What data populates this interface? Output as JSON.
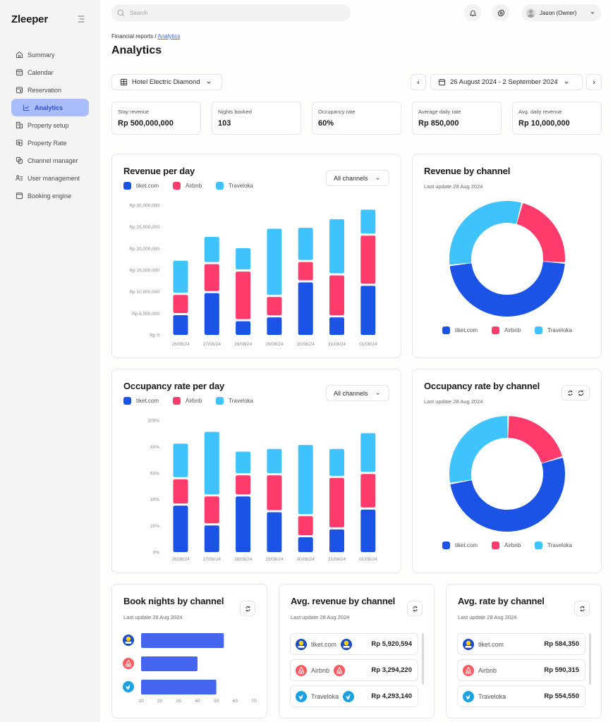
{
  "app": {
    "name": "Zleeper"
  },
  "sidebar": {
    "items": [
      {
        "label": "Summary",
        "icon": "home-icon"
      },
      {
        "label": "Calendar",
        "icon": "calendar-icon"
      },
      {
        "label": "Reservation",
        "icon": "reservation-icon"
      },
      {
        "label": "Analytics",
        "icon": "chart-line-icon",
        "active": true
      },
      {
        "label": "Property setup",
        "icon": "building-icon"
      },
      {
        "label": "Property Rate",
        "icon": "rate-icon"
      },
      {
        "label": "Channel manager",
        "icon": "channel-icon"
      },
      {
        "label": "User management",
        "icon": "users-list-icon"
      },
      {
        "label": "Booking engine",
        "icon": "window-icon"
      }
    ]
  },
  "topbar": {
    "search_placeholder": "Search",
    "user_label": "Jason (Owner)"
  },
  "breadcrumb": {
    "parent": "Financial reports",
    "separator": " / ",
    "current": "Analytics"
  },
  "page_title": "Analytics",
  "filters": {
    "hotel": "Hotel Electric Diamond",
    "date_range": "26 August 2024 - 2 September 2024"
  },
  "kpis": [
    {
      "label": "Stay revenue",
      "value": "Rp 500,000,000"
    },
    {
      "label": "Nights booked",
      "value": "103"
    },
    {
      "label": "Occupancy rate",
      "value": "60%"
    },
    {
      "label": "Average daily rate",
      "value": "Rp 850,000"
    },
    {
      "label": "Avg. daily revenue",
      "value": "Rp 10,000,000"
    }
  ],
  "channels": [
    {
      "name": "tiket.com",
      "color": "#1a53e6"
    },
    {
      "name": "Airbnb",
      "color": "#ff3b6b"
    },
    {
      "name": "Traveloka",
      "color": "#3ec3fc"
    }
  ],
  "cards": {
    "revenue_per_day": {
      "title": "Revenue per day",
      "filter": "All channels"
    },
    "revenue_by_channel": {
      "title": "Revenue by channel",
      "subtitle": "Last update 28 Aug 2024"
    },
    "occupancy_per_day": {
      "title": "Occupancy rate per day",
      "filter": "All channels"
    },
    "occupancy_by_channel": {
      "title": "Occupancy rate by channel",
      "subtitle": "Last update 28 Aug 2024"
    },
    "book_nights": {
      "title": "Book nights by channel",
      "subtitle": "Last update 28 Aug 2024"
    },
    "avg_revenue": {
      "title": "Avg. revenue by channel",
      "subtitle": "Last update 28 Aug 2024",
      "rows": [
        {
          "name": "tiket.com",
          "value": "Rp 5,920,594"
        },
        {
          "name": "Airbnb",
          "value": "Rp 3,294,220"
        },
        {
          "name": "Traveloka",
          "value": "Rp 4,293,140"
        }
      ]
    },
    "avg_rate": {
      "title": "Avg. rate by channel",
      "subtitle": "Last update 28 Aug 2024",
      "rows": [
        {
          "name": "tiket.com",
          "value": "Rp 584,350"
        },
        {
          "name": "Airbnb",
          "value": "Rp 590,315"
        },
        {
          "name": "Traveloka",
          "value": "Rp 554,550"
        }
      ]
    }
  },
  "chart_data": [
    {
      "id": "revenue_per_day",
      "type": "bar",
      "stacked": true,
      "title": "Revenue per day",
      "categories": [
        "26/08/24",
        "27/08/24",
        "28/08/24",
        "29/08/24",
        "30/08/24",
        "31/08/24",
        "01/08/24"
      ],
      "series": [
        {
          "name": "tiket.com",
          "values": [
            4800000,
            9900000,
            3400000,
            4300000,
            12400000,
            4300000,
            11600000
          ]
        },
        {
          "name": "Airbnb",
          "values": [
            4700000,
            6700000,
            11500000,
            4700000,
            4700000,
            9700000,
            11600000
          ]
        },
        {
          "name": "Traveloka",
          "values": [
            7900000,
            6300000,
            5400000,
            15800000,
            7900000,
            13000000,
            6000000
          ]
        }
      ],
      "yticks": [
        "Rp 0",
        "Rp 5,000,000",
        "Rp 10,000,000",
        "Rp 15,000,000",
        "Rp 20,000,000",
        "Rp 25,000,000",
        "Rp 30,000,000"
      ],
      "ylim": [
        0,
        30000000
      ],
      "legend": "top-left"
    },
    {
      "id": "revenue_by_channel",
      "type": "pie",
      "donut": true,
      "title": "Revenue by channel",
      "labels": [
        "tiket.com",
        "Airbnb",
        "Traveloka"
      ],
      "values": [
        47,
        22,
        31
      ],
      "legend": "bottom"
    },
    {
      "id": "occupancy_per_day",
      "type": "bar",
      "stacked": true,
      "title": "Occupancy rate per day",
      "categories": [
        "26/08/24",
        "27/08/24",
        "28/08/24",
        "29/08/24",
        "30/08/24",
        "31/08/24",
        "01/08/24"
      ],
      "series": [
        {
          "name": "tiket.com",
          "values": [
            36,
            21,
            43,
            31,
            12,
            18,
            33
          ]
        },
        {
          "name": "Airbnb",
          "values": [
            20,
            22,
            16,
            28,
            16,
            39,
            27
          ]
        },
        {
          "name": "Traveloka",
          "values": [
            27,
            49,
            18,
            20,
            54,
            22,
            31
          ]
        }
      ],
      "yticks": [
        "0%",
        "20%",
        "40%",
        "60%",
        "80%",
        "100%"
      ],
      "ylim": [
        0,
        100
      ],
      "legend": "top-left"
    },
    {
      "id": "occupancy_by_channel",
      "type": "pie",
      "donut": true,
      "title": "Occupancy rate by channel",
      "labels": [
        "tiket.com",
        "Airbnb",
        "Traveloka"
      ],
      "values": [
        52,
        20,
        28
      ],
      "legend": "bottom"
    },
    {
      "id": "book_nights",
      "type": "bar",
      "orientation": "horizontal",
      "title": "Book nights by channel",
      "categories": [
        "tiket.com",
        "Airbnb",
        "Traveloka"
      ],
      "values": [
        54,
        40,
        50
      ],
      "xticks": [
        "10",
        "20",
        "30",
        "40",
        "50",
        "60",
        "70"
      ],
      "xlim": [
        10,
        70
      ]
    }
  ]
}
